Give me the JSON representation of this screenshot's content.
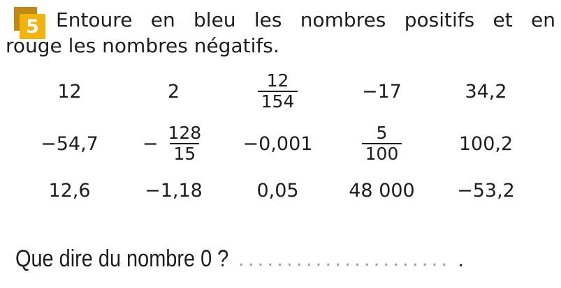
{
  "exercise": {
    "badge_number": "5",
    "instruction": {
      "line1": "Entoure en bleu les nombres positifs et en",
      "line2": "rouge les nombres négatifs.",
      "full_text": "Entoure en bleu les nombres positifs et en rouge les nombres négatifs."
    }
  },
  "grid": {
    "rows": [
      {
        "cells": [
          {
            "value": "12"
          },
          {
            "value": "2"
          },
          {
            "num": "12",
            "den": "154"
          },
          {
            "value": "−17"
          },
          {
            "value": "34,2"
          }
        ]
      },
      {
        "cells": [
          {
            "value": "−54,7"
          },
          {
            "sign": "−",
            "num": "128",
            "den": "15"
          },
          {
            "value": "−0,001"
          },
          {
            "num": "5",
            "den": "100"
          },
          {
            "value": "100,2"
          }
        ]
      },
      {
        "cells": [
          {
            "value": "12,6"
          },
          {
            "value": "−1,18"
          },
          {
            "value": "0,05"
          },
          {
            "value": "48 000"
          },
          {
            "value": "−53,2"
          }
        ]
      }
    ]
  },
  "footer": {
    "question": "Que dire du nombre 0 ?",
    "dots": "......................",
    "end_mark": "."
  },
  "colors": {
    "badge_front": "#f2b30d",
    "badge_back": "#bd8a15",
    "text": "#1d1d1b",
    "dots": "#9b9b9b"
  }
}
